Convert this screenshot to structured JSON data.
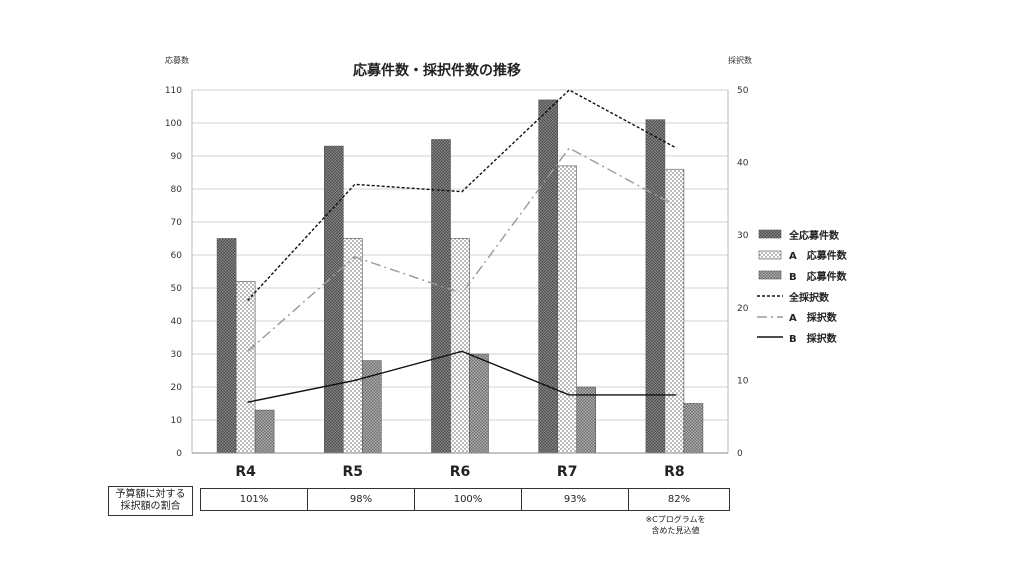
{
  "chart_data": {
    "type": "bar",
    "title": "応募件数・採択件数の推移",
    "ylabel_left": "応募数",
    "ylabel_right": "採択数",
    "categories": [
      "R4",
      "R5",
      "R6",
      "R7",
      "R8"
    ],
    "ylim_left": [
      0,
      110
    ],
    "yticks_left": [
      "0",
      "10",
      "20",
      "30",
      "40",
      "50",
      "60",
      "70",
      "80",
      "90",
      "100",
      "110"
    ],
    "ylim_right": [
      0,
      50
    ],
    "yticks_right": [
      "0",
      "10",
      "20",
      "30",
      "40",
      "50"
    ],
    "grid": true,
    "legend_position": "right",
    "bar_series": [
      {
        "name": "全応募件数",
        "values": [
          65,
          93,
          95,
          107,
          101
        ],
        "pattern": "dark-check"
      },
      {
        "name": "A　応募件数",
        "values": [
          52,
          65,
          65,
          87,
          86
        ],
        "pattern": "dots"
      },
      {
        "name": "B　応募件数",
        "values": [
          13,
          28,
          30,
          20,
          15
        ],
        "pattern": "gray-check"
      }
    ],
    "line_series": [
      {
        "name": "全採択数",
        "values": [
          21,
          37,
          36,
          50,
          42
        ],
        "style": "short-dash",
        "axis": "right"
      },
      {
        "name": "A　採択数",
        "values": [
          14,
          27,
          22,
          42,
          34
        ],
        "style": "dash-dot",
        "axis": "right"
      },
      {
        "name": "B　採択数",
        "values": [
          7,
          10,
          14,
          8,
          8
        ],
        "style": "solid",
        "axis": "right"
      }
    ]
  },
  "table": {
    "row_label": [
      "予算額に対する",
      "採択額の割合"
    ],
    "values": [
      "101%",
      "98%",
      "100%",
      "93%",
      "82%"
    ]
  },
  "note": [
    "※Cプログラムを",
    "含めた見込値"
  ]
}
